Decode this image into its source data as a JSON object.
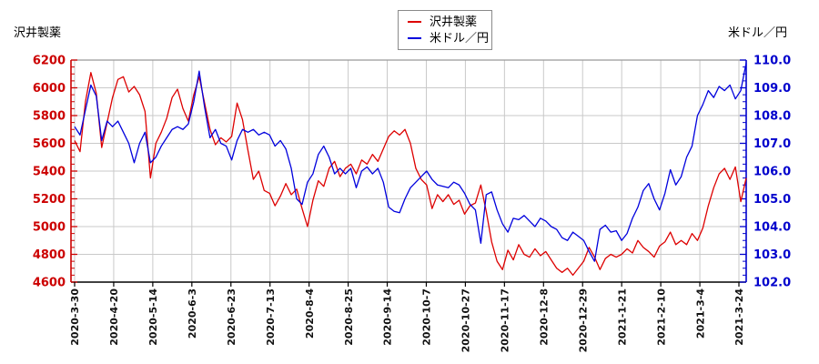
{
  "titles": {
    "left": "沢井製薬",
    "right": "米ドル／円"
  },
  "legend": {
    "position": "top-center",
    "items": [
      {
        "label": "沢井製薬",
        "color": "#dd0000"
      },
      {
        "label": "米ドル／円",
        "color": "#0000dd"
      }
    ]
  },
  "chart_data": {
    "type": "line",
    "title": "",
    "grid": true,
    "legend_position": "top-center",
    "x_tick_labels": [
      "2020-3-30",
      "2020-4-20",
      "2020-5-14",
      "2020-6-3",
      "2020-6-23",
      "2020-7-13",
      "2020-8-4",
      "2020-8-25",
      "2020-9-14",
      "2020-10-7",
      "2020-10-27",
      "2020-11-17",
      "2020-12-8",
      "2020-12-29",
      "2021-1-21",
      "2021-2-10",
      "2021-3-4",
      "2021-3-24"
    ],
    "axes": {
      "left": {
        "label": "沢井製薬",
        "min": 4600,
        "max": 6200,
        "step": 200,
        "minor_step": 50,
        "color": "#cc0000",
        "tick_labels": [
          "6200",
          "6000",
          "5800",
          "5600",
          "5400",
          "5200",
          "5000",
          "4800",
          "4600"
        ]
      },
      "right": {
        "label": "米ドル／円",
        "min": 102.0,
        "max": 110.0,
        "step": 1.0,
        "minor_step": 0.25,
        "color": "#0000cc",
        "tick_labels": [
          "110.0",
          "109.0",
          "108.0",
          "107.0",
          "106.0",
          "105.0",
          "104.0",
          "103.0",
          "102.0"
        ]
      }
    },
    "series": [
      {
        "name": "沢井製薬",
        "axis": "left",
        "color": "#dd0000",
        "values": [
          5620,
          5540,
          5900,
          6110,
          5960,
          5570,
          5750,
          5930,
          6060,
          6080,
          5970,
          6010,
          5950,
          5830,
          5350,
          5600,
          5680,
          5780,
          5930,
          5990,
          5850,
          5760,
          5950,
          6080,
          5890,
          5700,
          5590,
          5640,
          5610,
          5650,
          5890,
          5770,
          5550,
          5340,
          5400,
          5260,
          5240,
          5150,
          5220,
          5310,
          5230,
          5270,
          5130,
          5000,
          5190,
          5330,
          5290,
          5420,
          5470,
          5360,
          5420,
          5450,
          5380,
          5480,
          5450,
          5520,
          5470,
          5560,
          5650,
          5690,
          5660,
          5700,
          5600,
          5420,
          5340,
          5300,
          5130,
          5230,
          5180,
          5230,
          5160,
          5190,
          5090,
          5150,
          5170,
          5300,
          5110,
          4890,
          4750,
          4690,
          4830,
          4760,
          4870,
          4800,
          4780,
          4840,
          4790,
          4820,
          4760,
          4700,
          4670,
          4700,
          4650,
          4700,
          4750,
          4850,
          4780,
          4690,
          4770,
          4800,
          4780,
          4800,
          4840,
          4810,
          4900,
          4850,
          4820,
          4780,
          4860,
          4890,
          4960,
          4870,
          4900,
          4870,
          4950,
          4900,
          4990,
          5150,
          5280,
          5380,
          5420,
          5340,
          5430,
          5180,
          5350
        ]
      },
      {
        "name": "米ドル／円",
        "axis": "right",
        "color": "#0000dd",
        "values": [
          107.6,
          107.3,
          108.2,
          109.1,
          108.7,
          107.1,
          107.8,
          107.6,
          107.8,
          107.4,
          107.0,
          106.3,
          107.0,
          107.4,
          106.3,
          106.5,
          106.9,
          107.2,
          107.5,
          107.6,
          107.5,
          107.7,
          108.5,
          109.6,
          108.3,
          107.2,
          107.5,
          107.0,
          106.9,
          106.4,
          107.1,
          107.5,
          107.4,
          107.5,
          107.3,
          107.4,
          107.3,
          106.9,
          107.1,
          106.8,
          106.1,
          105.0,
          104.8,
          105.6,
          105.9,
          106.6,
          106.9,
          106.5,
          105.9,
          106.1,
          105.9,
          106.1,
          105.4,
          106.0,
          106.15,
          105.9,
          106.1,
          105.6,
          104.7,
          104.55,
          104.5,
          105.0,
          105.4,
          105.6,
          105.8,
          106.0,
          105.7,
          105.5,
          105.45,
          105.4,
          105.6,
          105.5,
          105.2,
          104.8,
          104.6,
          103.4,
          105.15,
          105.25,
          104.6,
          104.1,
          103.8,
          104.3,
          104.25,
          104.4,
          104.2,
          104.0,
          104.3,
          104.2,
          104.0,
          103.9,
          103.6,
          103.5,
          103.8,
          103.65,
          103.5,
          103.1,
          102.75,
          103.9,
          104.05,
          103.8,
          103.85,
          103.5,
          103.75,
          104.3,
          104.7,
          105.3,
          105.55,
          105.0,
          104.6,
          105.2,
          106.05,
          105.5,
          105.8,
          106.5,
          106.9,
          108.0,
          108.4,
          108.9,
          108.65,
          109.05,
          108.9,
          109.1,
          108.6,
          108.9,
          109.9
        ]
      }
    ]
  }
}
